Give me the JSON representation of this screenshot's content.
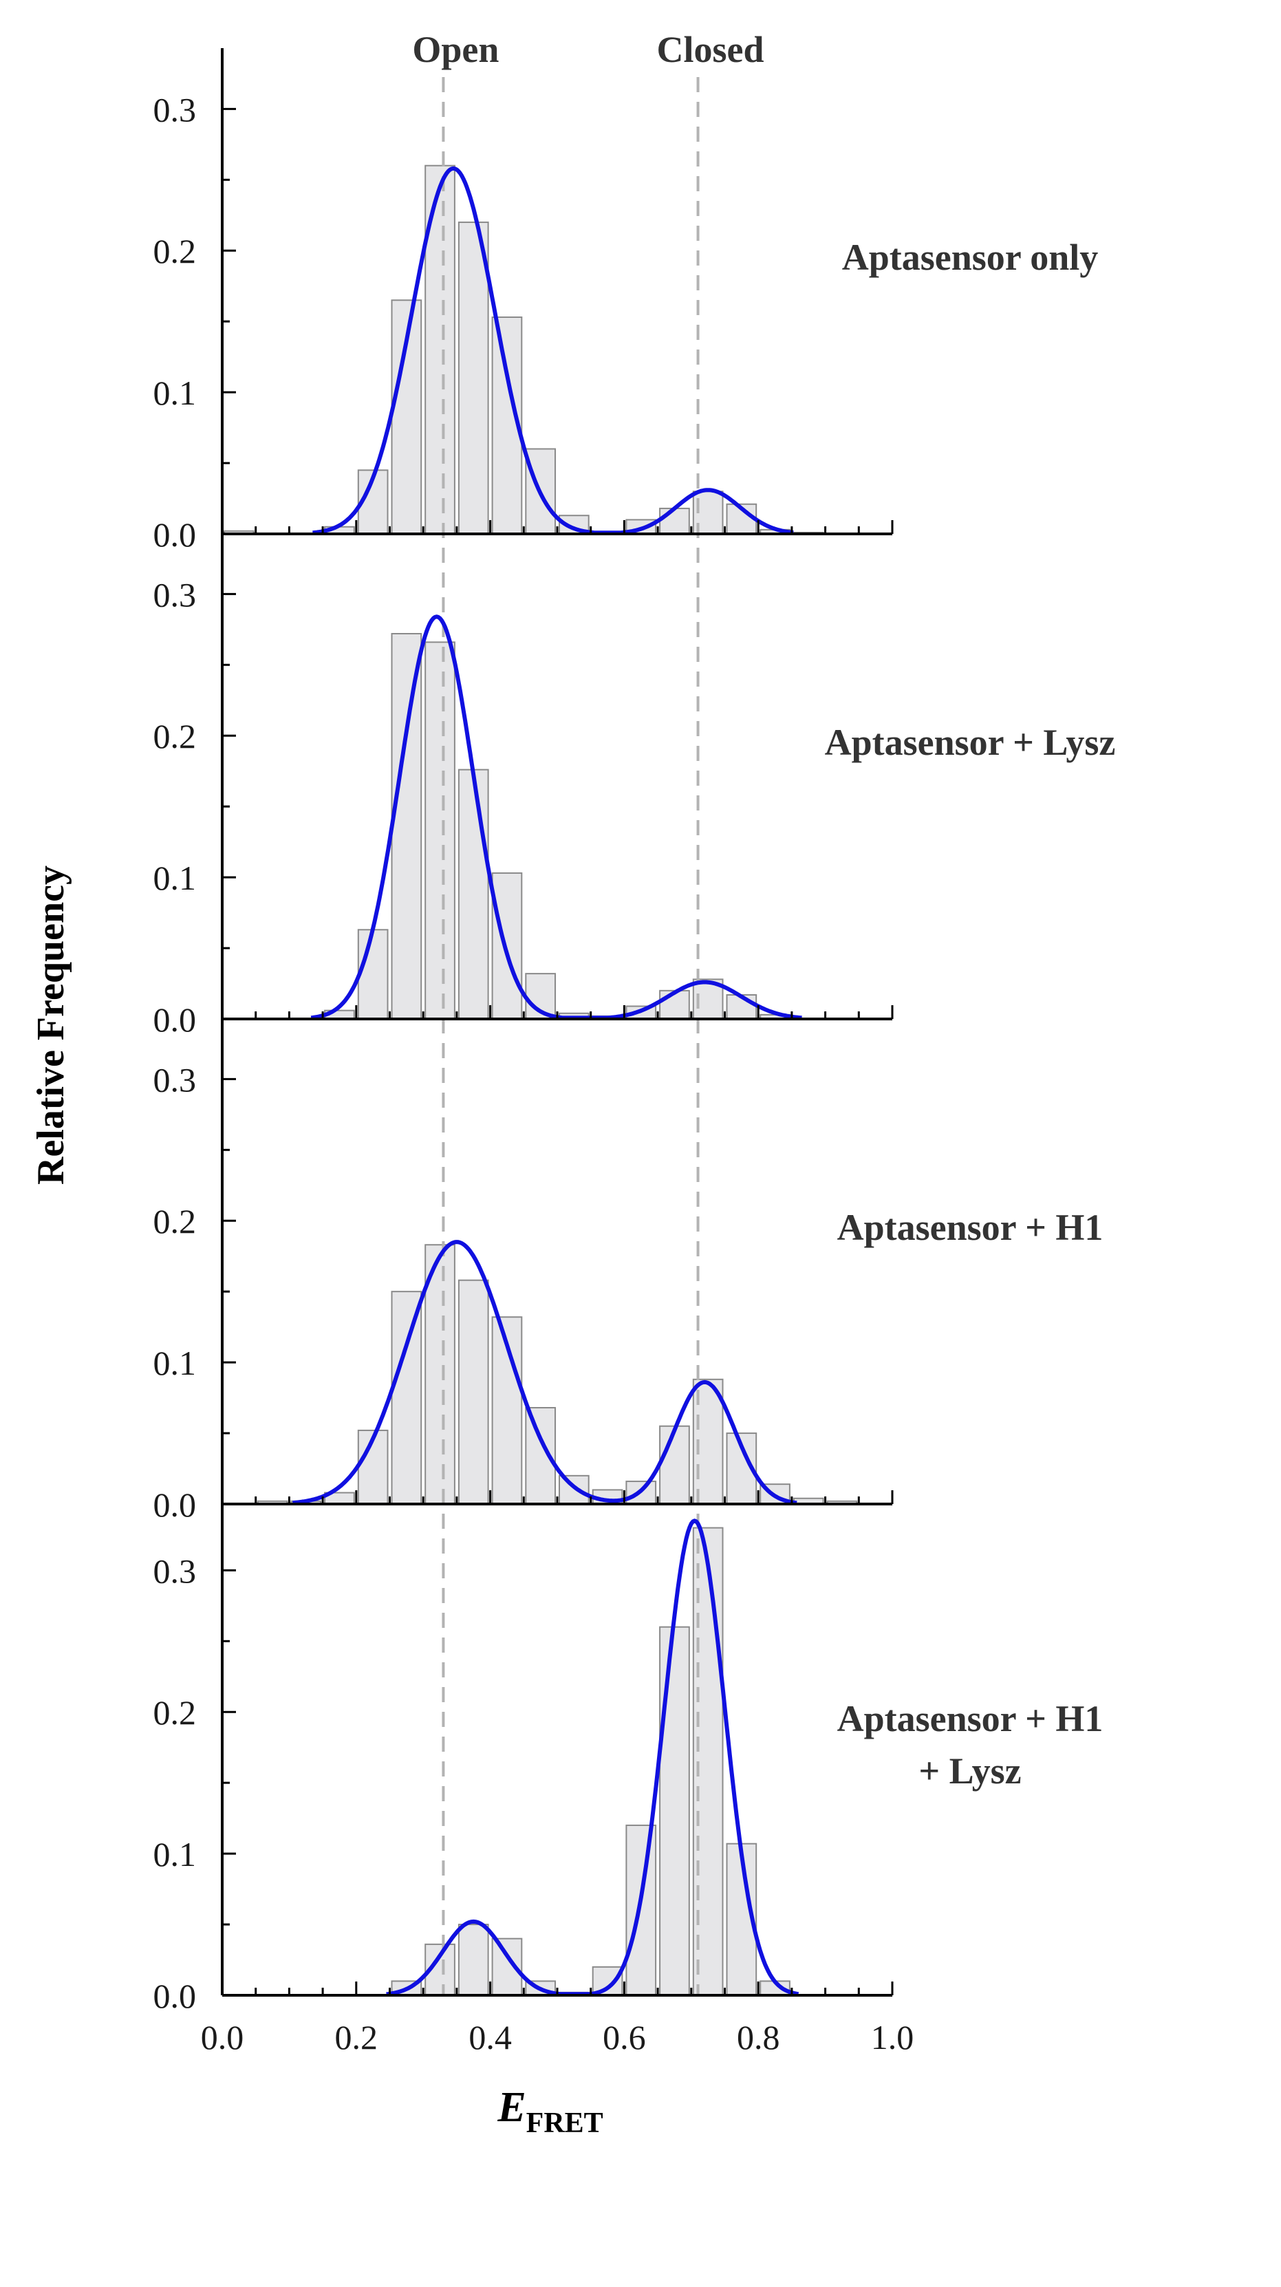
{
  "chart_data": {
    "type": "bar",
    "title": "",
    "xlabel": "E",
    "xlabel_subscript": "FRET",
    "ylabel": "Relative Frequency",
    "xlim": [
      0,
      1
    ],
    "ylim": [
      0,
      0.34
    ],
    "x_ticks": [
      "0.0",
      "0.2",
      "0.4",
      "0.6",
      "0.8",
      "1.0"
    ],
    "y_ticks": [
      "0.0",
      "0.1",
      "0.2",
      "0.3"
    ],
    "bin_width": 0.05,
    "reference_lines": [
      {
        "label": "Open",
        "x": 0.33
      },
      {
        "label": "Closed",
        "x": 0.71
      }
    ],
    "panels": [
      {
        "label_lines": [
          "Aptasensor only"
        ],
        "bin_centers": [
          0.025,
          0.075,
          0.125,
          0.175,
          0.225,
          0.275,
          0.325,
          0.375,
          0.425,
          0.475,
          0.525,
          0.575,
          0.625,
          0.675,
          0.725,
          0.775,
          0.825,
          0.875
        ],
        "values": [
          0.002,
          0.0,
          0.0,
          0.005,
          0.045,
          0.165,
          0.26,
          0.22,
          0.153,
          0.06,
          0.013,
          0.0,
          0.01,
          0.018,
          0.03,
          0.021,
          0.003,
          0.001
        ],
        "fit": [
          {
            "mu": 0.345,
            "sigma": 0.062,
            "amp": 0.258
          },
          {
            "mu": 0.725,
            "sigma": 0.048,
            "amp": 0.031
          }
        ]
      },
      {
        "label_lines": [
          "Aptasensor + Lysz"
        ],
        "bin_centers": [
          0.025,
          0.075,
          0.125,
          0.175,
          0.225,
          0.275,
          0.325,
          0.375,
          0.425,
          0.475,
          0.525,
          0.575,
          0.625,
          0.675,
          0.725,
          0.775,
          0.825,
          0.875
        ],
        "values": [
          0.0,
          0.0,
          0.0,
          0.006,
          0.063,
          0.272,
          0.266,
          0.176,
          0.103,
          0.032,
          0.004,
          0.002,
          0.009,
          0.02,
          0.028,
          0.017,
          0.003,
          0.0
        ],
        "fit": [
          {
            "mu": 0.32,
            "sigma": 0.055,
            "amp": 0.284
          },
          {
            "mu": 0.72,
            "sigma": 0.055,
            "amp": 0.026
          }
        ]
      },
      {
        "label_lines": [
          "Aptasensor + H1"
        ],
        "bin_centers": [
          0.025,
          0.075,
          0.125,
          0.175,
          0.225,
          0.275,
          0.325,
          0.375,
          0.425,
          0.475,
          0.525,
          0.575,
          0.625,
          0.675,
          0.725,
          0.775,
          0.825,
          0.875,
          0.925
        ],
        "values": [
          0.0,
          0.002,
          0.002,
          0.008,
          0.052,
          0.15,
          0.183,
          0.158,
          0.132,
          0.068,
          0.02,
          0.01,
          0.016,
          0.055,
          0.088,
          0.05,
          0.014,
          0.004,
          0.002
        ],
        "fit": [
          {
            "mu": 0.35,
            "sigma": 0.075,
            "amp": 0.185
          },
          {
            "mu": 0.72,
            "sigma": 0.045,
            "amp": 0.086
          }
        ]
      },
      {
        "label_lines": [
          "Aptasensor + H1",
          "+ Lysz"
        ],
        "bin_centers": [
          0.025,
          0.075,
          0.125,
          0.175,
          0.225,
          0.275,
          0.325,
          0.375,
          0.425,
          0.475,
          0.525,
          0.575,
          0.625,
          0.675,
          0.725,
          0.775,
          0.825,
          0.875
        ],
        "values": [
          0.0,
          0.0,
          0.0,
          0.0,
          0.0,
          0.01,
          0.036,
          0.05,
          0.04,
          0.01,
          0.002,
          0.02,
          0.12,
          0.26,
          0.33,
          0.107,
          0.01,
          0.0
        ],
        "fit": [
          {
            "mu": 0.375,
            "sigma": 0.045,
            "amp": 0.052
          },
          {
            "mu": 0.705,
            "sigma": 0.045,
            "amp": 0.335
          }
        ]
      }
    ]
  }
}
